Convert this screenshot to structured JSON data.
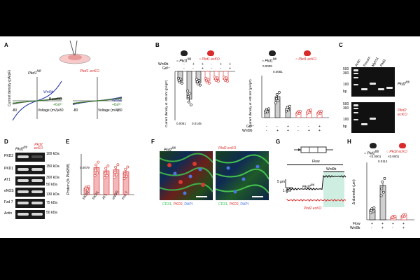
{
  "panels": {
    "A": {
      "letter": "A",
      "wt_title": "Pkd1",
      "wt_sup": "fl/fl",
      "ko_title": "Pkd1 ecKO",
      "ylabel": "Current density (pA/pF)",
      "xlabel": "Voltage (mV)",
      "x_left": "-80",
      "x_right": "+80",
      "labels": {
        "wnt": "Wnt9b",
        "baseline": "Baseline",
        "gd": "+Gd³⁺"
      }
    },
    "B": {
      "letter": "B",
      "legend_wt": "Pkd1",
      "legend_wt_sup": "fl/fl",
      "legend_ko": "Pkd1 ecKO",
      "row_wnt": "Wnt9b",
      "row_gd": "Gd³⁺",
      "signs_wnt": [
        "-",
        "+",
        "+",
        "-",
        "+",
        "+"
      ],
      "signs_gd": [
        "-",
        "-",
        "+",
        "-",
        "-",
        "+"
      ],
      "ylabel_left": "Current density at -80 mV (pA/pF)",
      "ylabel_right": "Current density at +80 mV (pA/pF)",
      "p_left": [
        "0.0051",
        "0.0145"
      ],
      "p_right": [
        "0.0009",
        "0.0081"
      ]
    },
    "C": {
      "letter": "C",
      "lanes": [
        "Actin",
        "Pecam",
        "Myh11",
        "Pkd2"
      ],
      "ladder_top": [
        "500",
        "300",
        "100"
      ],
      "ladder_bottom": [
        "500",
        "300",
        "100"
      ],
      "bp": "bp",
      "wt_label": "Pkd2",
      "wt_sup": "fl/fl",
      "ko_label": "Pkd2 ecKO"
    },
    "D": {
      "letter": "D",
      "col_wt": "Pkd2",
      "col_wt_sup": "fl/fl",
      "col_ko": "Pkd2 ecKO",
      "rows": [
        "PKD2",
        "PKD1",
        "AT1",
        "eNOS",
        "Fzd 7",
        "Actin"
      ],
      "kda": [
        "100 kDa",
        "150 kDa",
        "300 kDa",
        "50 kDa",
        "130 kDa",
        "75 kDa",
        "50 kDa"
      ]
    },
    "E": {
      "letter": "E",
      "ylabel": "Protein (% Pkd2fl/fl)",
      "categories": [
        "PKD2",
        "PKD1",
        "AT1",
        "eNOS",
        "Fzd 7"
      ],
      "p": "0.0079"
    },
    "F": {
      "letter": "F",
      "wt_label": "Pkd2",
      "wt_sup": "fl/fl",
      "ko_label": "Pkd2 ecKO",
      "legend": [
        "CD31",
        "PKD2",
        "DAPI"
      ],
      "legend_colors": [
        "#2fbf4f",
        "#e0302c",
        "#3b6fe0"
      ]
    },
    "G": {
      "letter": "G",
      "flow": "Flow",
      "wnt": "Wnt9b",
      "scale_y": "5 μm",
      "scale_x": "1 min",
      "wt_label": "Pkd2",
      "wt_sup": "fl/fl",
      "ko_label": "Pkd2 ecKO"
    },
    "H": {
      "letter": "H",
      "legend_wt": "Pkd2",
      "legend_wt_sup": "fl/fl",
      "legend_ko": "Pkd2 ecKO",
      "ylabel": "Δ diameter (μm)",
      "p": [
        "<0.0001",
        "<0.0001",
        "0.0114"
      ],
      "row_flow": "Flow",
      "row_wnt": "Wnt9b",
      "signs_flow": [
        "+",
        "+",
        "+",
        "+"
      ],
      "signs_wnt": [
        "-",
        "+",
        "-",
        "+"
      ]
    }
  },
  "colors": {
    "red": "#d92b2b",
    "green": "#3a7d2a",
    "blue": "#2a3aa8",
    "pink": "#f4b6b8"
  },
  "chart_data": [
    {
      "type": "bar",
      "id": "B-left",
      "categories": [
        "fl/fl -",
        "fl/fl Wnt9b",
        "fl/fl Wnt9b+Gd",
        "ecKO -",
        "ecKO Wnt9b",
        "ecKO Wnt9b+Gd"
      ],
      "values": [
        -6,
        -17,
        -7,
        -6,
        -5,
        -5
      ],
      "ylim": [
        -30,
        0
      ]
    },
    {
      "type": "bar",
      "id": "B-right",
      "categories": [
        "fl/fl -",
        "fl/fl Wnt9b",
        "fl/fl Wnt9b+Gd",
        "ecKO -",
        "ecKO Wnt9b",
        "ecKO Wnt9b+Gd"
      ],
      "values": [
        7,
        20,
        9,
        5,
        6,
        5
      ],
      "ylim": [
        0,
        40
      ]
    },
    {
      "type": "bar",
      "id": "E",
      "categories": [
        "PKD2",
        "PKD1",
        "AT1",
        "eNOS",
        "Fzd 7"
      ],
      "values": [
        25,
        100,
        88,
        92,
        85
      ],
      "ylim": [
        0,
        150
      ]
    },
    {
      "type": "bar",
      "id": "H",
      "categories": [
        "fl/fl Flow",
        "fl/fl Flow+Wnt9b",
        "ecKO Flow",
        "ecKO Flow+Wnt9b"
      ],
      "values": [
        7,
        24,
        2,
        3
      ],
      "ylim": [
        0,
        40
      ]
    }
  ]
}
